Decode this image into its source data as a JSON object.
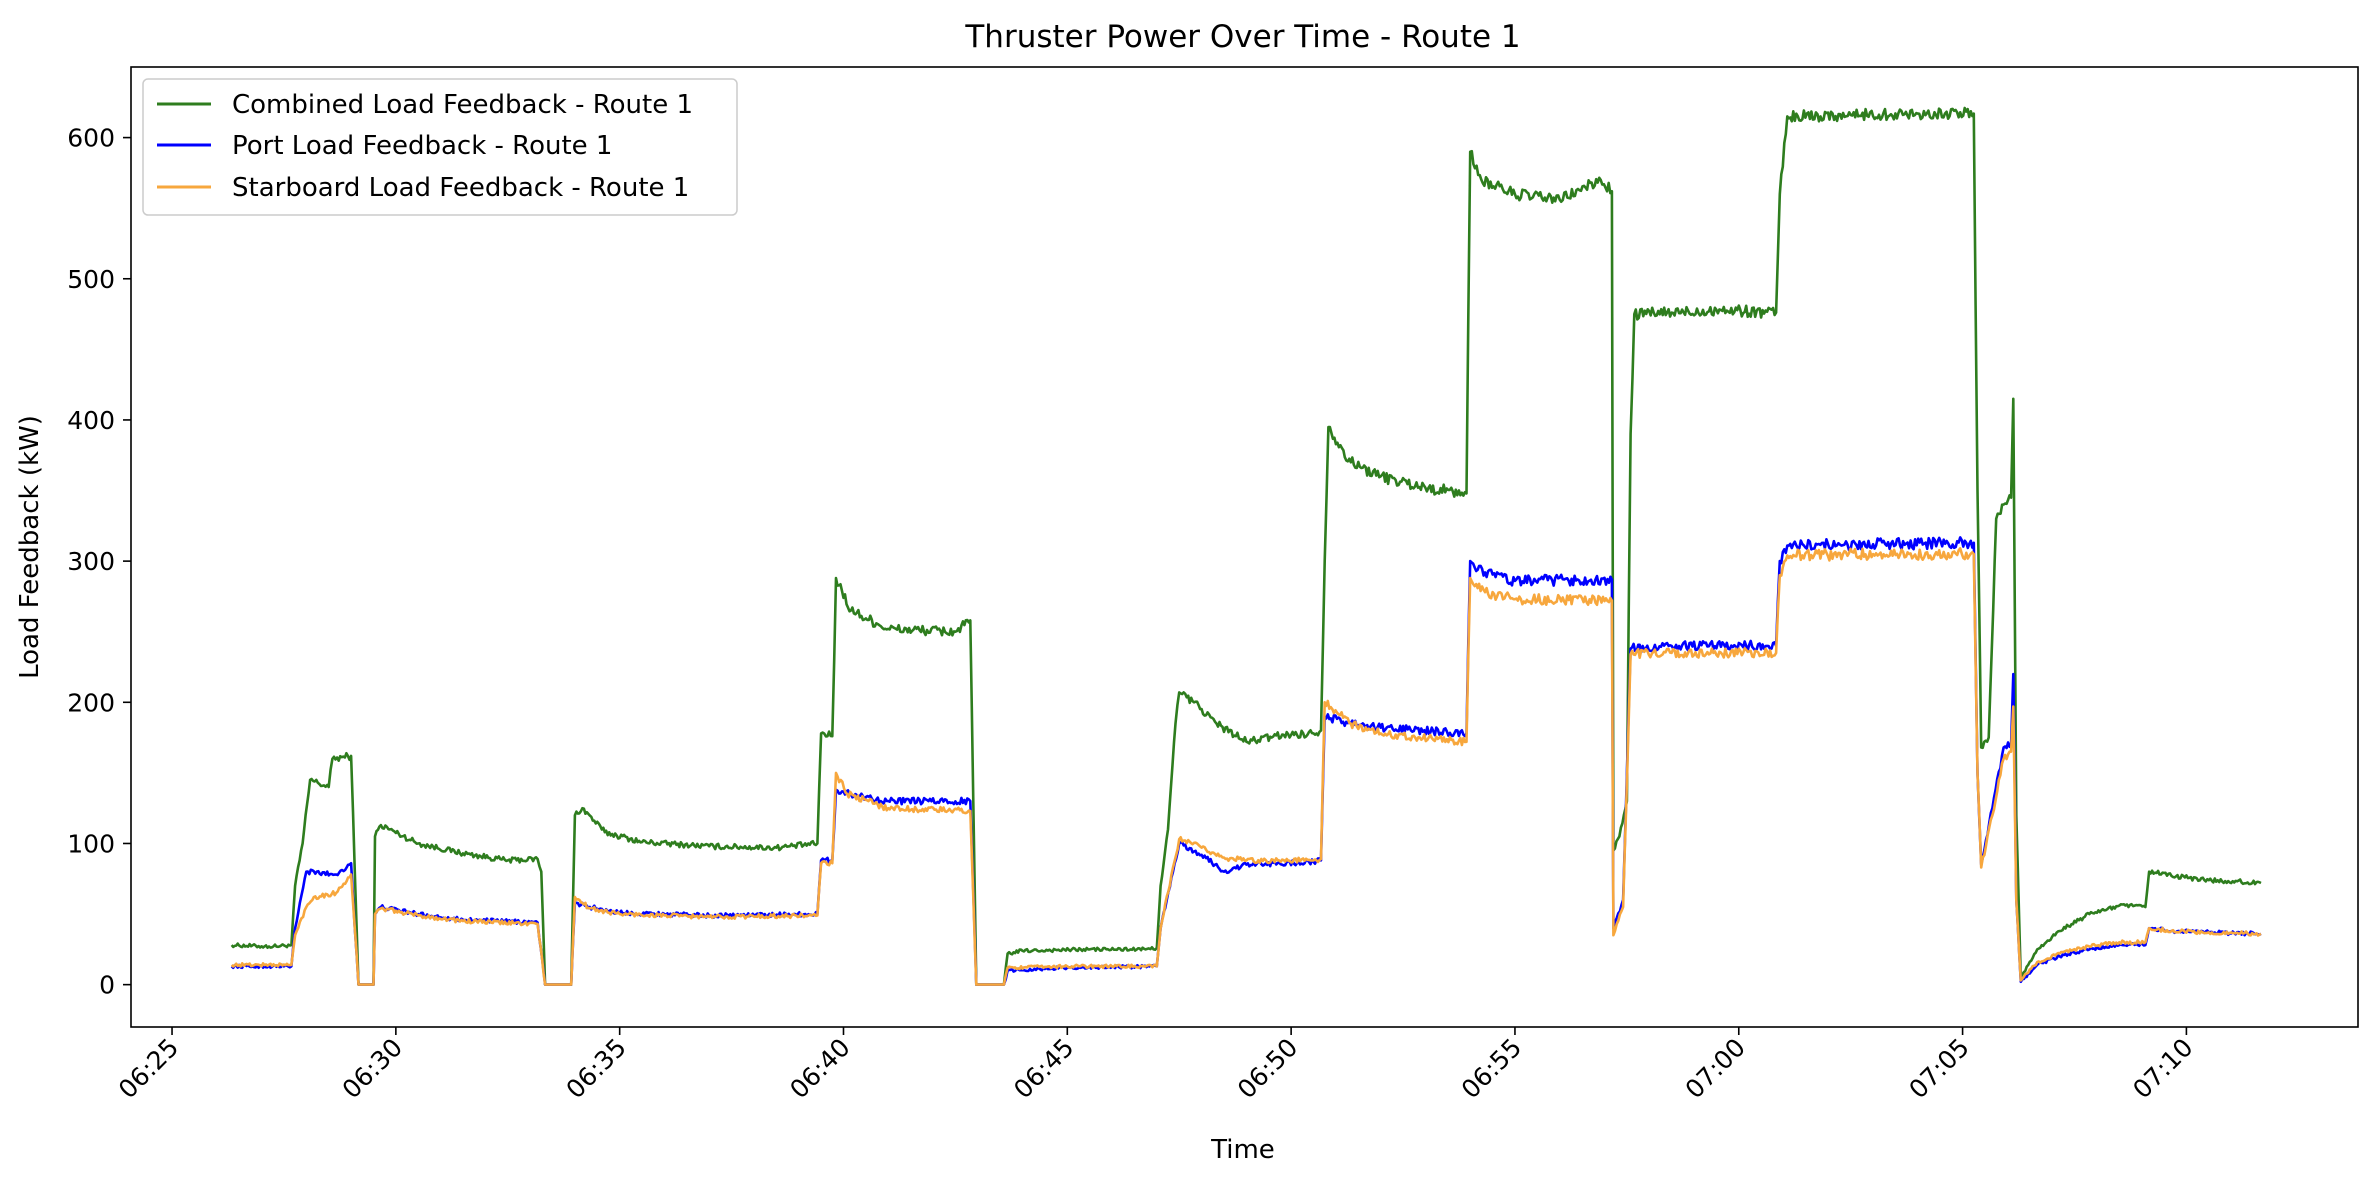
{
  "chart_data": {
    "type": "line",
    "title": "Thruster Power Over Time - Route 1",
    "xlabel": "Time",
    "ylabel": "Load Feedback (kW)",
    "x_ticks": [
      "06:25",
      "06:30",
      "06:35",
      "06:40",
      "06:45",
      "06:50",
      "06:55",
      "07:00",
      "07:05",
      "07:10"
    ],
    "xlim": [
      "06:24:05",
      "07:13:50"
    ],
    "y_ticks": [
      0,
      100,
      200,
      300,
      400,
      500,
      600
    ],
    "ylim": [
      -30,
      650
    ],
    "grid": false,
    "legend_position": "upper left",
    "series": [
      {
        "name": "Combined Load Feedback - Route 1",
        "color": "#2e7d1e",
        "points": [
          [
            "06:26:20",
            28
          ],
          [
            "06:27:10",
            27
          ],
          [
            "06:27:40",
            28
          ],
          [
            "06:27:45",
            70
          ],
          [
            "06:27:55",
            100
          ],
          [
            "06:28:05",
            145
          ],
          [
            "06:28:30",
            140
          ],
          [
            "06:28:35",
            160
          ],
          [
            "06:29:00",
            162
          ],
          [
            "06:29:05",
            80
          ],
          [
            "06:29:10",
            0
          ],
          [
            "06:29:30",
            0
          ],
          [
            "06:29:32",
            105
          ],
          [
            "06:29:40",
            113
          ],
          [
            "06:30:30",
            100
          ],
          [
            "06:31:30",
            93
          ],
          [
            "06:32:30",
            88
          ],
          [
            "06:33:10",
            89
          ],
          [
            "06:33:15",
            80
          ],
          [
            "06:33:20",
            0
          ],
          [
            "06:33:55",
            0
          ],
          [
            "06:34:00",
            120
          ],
          [
            "06:34:10",
            125
          ],
          [
            "06:34:40",
            108
          ],
          [
            "06:35:30",
            101
          ],
          [
            "06:37:00",
            98
          ],
          [
            "06:38:30",
            97
          ],
          [
            "06:39:25",
            100
          ],
          [
            "06:39:30",
            178
          ],
          [
            "06:39:45",
            176
          ],
          [
            "06:39:50",
            288
          ],
          [
            "06:40:10",
            265
          ],
          [
            "06:41:00",
            252
          ],
          [
            "06:42:30",
            250
          ],
          [
            "06:42:50",
            258
          ],
          [
            "06:42:58",
            0
          ],
          [
            "06:43:35",
            0
          ],
          [
            "06:43:40",
            22
          ],
          [
            "06:44:00",
            24
          ],
          [
            "06:45:30",
            25
          ],
          [
            "06:46:45",
            25
          ],
          [
            "06:47:00",
            26
          ],
          [
            "06:47:05",
            70
          ],
          [
            "06:47:15",
            110
          ],
          [
            "06:47:25",
            185
          ],
          [
            "06:47:30",
            207
          ],
          [
            "06:47:50",
            200
          ],
          [
            "06:48:20",
            185
          ],
          [
            "06:49:00",
            172
          ],
          [
            "06:49:50",
            177
          ],
          [
            "06:50:30",
            178
          ],
          [
            "06:50:40",
            180
          ],
          [
            "06:50:45",
            300
          ],
          [
            "06:50:50",
            395
          ],
          [
            "06:51:20",
            370
          ],
          [
            "06:52:00",
            360
          ],
          [
            "06:53:00",
            352
          ],
          [
            "06:53:55",
            348
          ],
          [
            "06:54:00",
            590
          ],
          [
            "06:54:15",
            570
          ],
          [
            "06:55:00",
            560
          ],
          [
            "06:56:00",
            556
          ],
          [
            "06:56:55",
            570
          ],
          [
            "06:57:10",
            562
          ],
          [
            "06:57:12",
            95
          ],
          [
            "06:57:20",
            105
          ],
          [
            "06:57:30",
            130
          ],
          [
            "06:57:35",
            390
          ],
          [
            "06:57:40",
            475
          ],
          [
            "06:58:30",
            476
          ],
          [
            "06:59:30",
            478
          ],
          [
            "07:00:50",
            476
          ],
          [
            "07:00:55",
            560
          ],
          [
            "07:01:05",
            615
          ],
          [
            "07:02:30",
            616
          ],
          [
            "07:04:00",
            617
          ],
          [
            "07:05:15",
            617
          ],
          [
            "07:05:20",
            350
          ],
          [
            "07:05:25",
            168
          ],
          [
            "07:05:35",
            175
          ],
          [
            "07:05:45",
            330
          ],
          [
            "07:05:55",
            340
          ],
          [
            "07:06:05",
            345
          ],
          [
            "07:06:08",
            415
          ],
          [
            "07:06:12",
            120
          ],
          [
            "07:06:18",
            5
          ],
          [
            "07:06:40",
            25
          ],
          [
            "07:07:10",
            38
          ],
          [
            "07:07:50",
            50
          ],
          [
            "07:08:30",
            56
          ],
          [
            "07:09:05",
            55
          ],
          [
            "07:09:10",
            80
          ],
          [
            "07:09:40",
            77
          ],
          [
            "07:10:30",
            74
          ],
          [
            "07:11:40",
            72
          ]
        ]
      },
      {
        "name": "Port Load Feedback - Route 1",
        "color": "#0000ff",
        "points": [
          [
            "06:26:20",
            13
          ],
          [
            "06:27:40",
            13
          ],
          [
            "06:27:45",
            40
          ],
          [
            "06:28:00",
            80
          ],
          [
            "06:28:40",
            78
          ],
          [
            "06:29:00",
            86
          ],
          [
            "06:29:05",
            40
          ],
          [
            "06:29:10",
            0
          ],
          [
            "06:29:30",
            0
          ],
          [
            "06:29:32",
            50
          ],
          [
            "06:29:40",
            55
          ],
          [
            "06:30:30",
            50
          ],
          [
            "06:31:30",
            46
          ],
          [
            "06:33:10",
            44
          ],
          [
            "06:33:20",
            0
          ],
          [
            "06:33:55",
            0
          ],
          [
            "06:34:00",
            58
          ],
          [
            "06:34:20",
            55
          ],
          [
            "06:35:00",
            51
          ],
          [
            "06:37:00",
            49
          ],
          [
            "06:39:25",
            50
          ],
          [
            "06:39:30",
            88
          ],
          [
            "06:39:45",
            88
          ],
          [
            "06:39:50",
            138
          ],
          [
            "06:40:10",
            135
          ],
          [
            "06:41:00",
            130
          ],
          [
            "06:42:50",
            130
          ],
          [
            "06:42:58",
            0
          ],
          [
            "06:43:35",
            0
          ],
          [
            "06:43:40",
            10
          ],
          [
            "06:45:00",
            12
          ],
          [
            "06:47:00",
            13
          ],
          [
            "06:47:05",
            40
          ],
          [
            "06:47:30",
            100
          ],
          [
            "06:48:00",
            92
          ],
          [
            "06:48:30",
            80
          ],
          [
            "06:49:00",
            85
          ],
          [
            "06:50:30",
            87
          ],
          [
            "06:50:40",
            88
          ],
          [
            "06:50:45",
            190
          ],
          [
            "06:51:20",
            185
          ],
          [
            "06:52:00",
            182
          ],
          [
            "06:53:55",
            178
          ],
          [
            "06:54:00",
            300
          ],
          [
            "06:54:20",
            292
          ],
          [
            "06:55:00",
            286
          ],
          [
            "06:57:10",
            287
          ],
          [
            "06:57:12",
            40
          ],
          [
            "06:57:25",
            60
          ],
          [
            "06:57:35",
            238
          ],
          [
            "06:58:30",
            240
          ],
          [
            "07:00:50",
            240
          ],
          [
            "07:00:55",
            300
          ],
          [
            "07:01:05",
            311
          ],
          [
            "07:03:00",
            312
          ],
          [
            "07:05:15",
            313
          ],
          [
            "07:05:20",
            150
          ],
          [
            "07:05:25",
            85
          ],
          [
            "07:05:40",
            125
          ],
          [
            "07:05:55",
            168
          ],
          [
            "07:06:05",
            170
          ],
          [
            "07:06:08",
            220
          ],
          [
            "07:06:12",
            60
          ],
          [
            "07:06:18",
            2
          ],
          [
            "07:06:40",
            14
          ],
          [
            "07:07:10",
            20
          ],
          [
            "07:07:50",
            25
          ],
          [
            "07:08:30",
            28
          ],
          [
            "07:09:05",
            28
          ],
          [
            "07:09:10",
            40
          ],
          [
            "07:09:40",
            38
          ],
          [
            "07:10:30",
            37
          ],
          [
            "07:11:40",
            36
          ]
        ]
      },
      {
        "name": "Starboard Load Feedback - Route 1",
        "color": "#f7a73d",
        "points": [
          [
            "06:26:20",
            14
          ],
          [
            "06:27:40",
            14
          ],
          [
            "06:27:45",
            35
          ],
          [
            "06:28:00",
            55
          ],
          [
            "06:28:10",
            62
          ],
          [
            "06:28:40",
            65
          ],
          [
            "06:29:00",
            78
          ],
          [
            "06:29:05",
            40
          ],
          [
            "06:29:10",
            0
          ],
          [
            "06:29:30",
            0
          ],
          [
            "06:29:32",
            50
          ],
          [
            "06:29:40",
            54
          ],
          [
            "06:30:30",
            49
          ],
          [
            "06:31:30",
            45
          ],
          [
            "06:33:10",
            43
          ],
          [
            "06:33:20",
            0
          ],
          [
            "06:33:55",
            0
          ],
          [
            "06:34:00",
            62
          ],
          [
            "06:34:20",
            54
          ],
          [
            "06:35:00",
            50
          ],
          [
            "06:37:00",
            48
          ],
          [
            "06:39:25",
            49
          ],
          [
            "06:39:30",
            86
          ],
          [
            "06:39:45",
            86
          ],
          [
            "06:39:50",
            150
          ],
          [
            "06:40:05",
            135
          ],
          [
            "06:41:00",
            125
          ],
          [
            "06:42:50",
            123
          ],
          [
            "06:42:58",
            0
          ],
          [
            "06:43:35",
            0
          ],
          [
            "06:43:40",
            12
          ],
          [
            "06:45:00",
            13
          ],
          [
            "06:47:00",
            13
          ],
          [
            "06:47:05",
            40
          ],
          [
            "06:47:30",
            103
          ],
          [
            "06:48:00",
            97
          ],
          [
            "06:48:30",
            90
          ],
          [
            "06:49:00",
            88
          ],
          [
            "06:50:30",
            88
          ],
          [
            "06:50:40",
            89
          ],
          [
            "06:50:45",
            200
          ],
          [
            "06:51:20",
            185
          ],
          [
            "06:52:00",
            178
          ],
          [
            "06:53:55",
            172
          ],
          [
            "06:54:00",
            288
          ],
          [
            "06:54:20",
            278
          ],
          [
            "06:55:00",
            273
          ],
          [
            "06:57:10",
            272
          ],
          [
            "06:57:12",
            35
          ],
          [
            "06:57:25",
            55
          ],
          [
            "06:57:35",
            234
          ],
          [
            "06:58:30",
            235
          ],
          [
            "07:00:50",
            235
          ],
          [
            "07:00:55",
            290
          ],
          [
            "07:01:05",
            304
          ],
          [
            "07:03:00",
            305
          ],
          [
            "07:05:15",
            305
          ],
          [
            "07:05:20",
            150
          ],
          [
            "07:05:25",
            83
          ],
          [
            "07:05:40",
            120
          ],
          [
            "07:05:55",
            160
          ],
          [
            "07:06:05",
            165
          ],
          [
            "07:06:08",
            197
          ],
          [
            "07:06:12",
            60
          ],
          [
            "07:06:18",
            3
          ],
          [
            "07:06:40",
            16
          ],
          [
            "07:07:10",
            22
          ],
          [
            "07:07:50",
            27
          ],
          [
            "07:08:30",
            30
          ],
          [
            "07:09:05",
            30
          ],
          [
            "07:09:10",
            40
          ],
          [
            "07:09:40",
            38
          ],
          [
            "07:10:30",
            37
          ],
          [
            "07:11:40",
            36
          ]
        ]
      }
    ]
  }
}
